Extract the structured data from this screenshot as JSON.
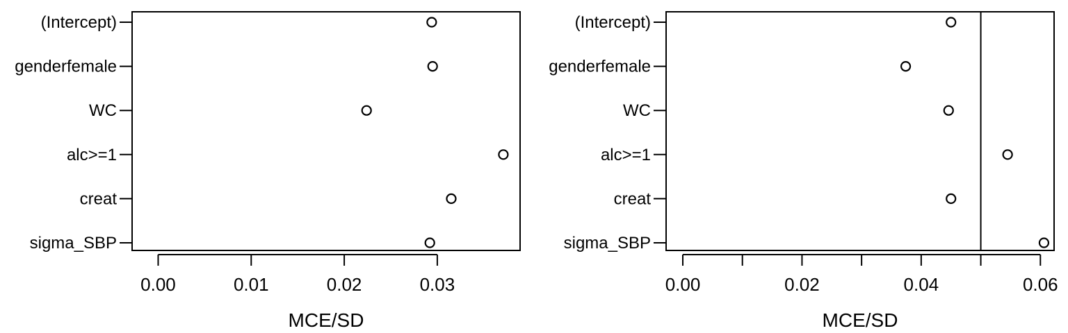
{
  "chart_data": [
    {
      "type": "scatter",
      "xlabel": "MCE/SD",
      "ylabel": "",
      "categories": [
        "(Intercept)",
        "genderfemale",
        "WC",
        "alc>=1",
        "creat",
        "sigma_SBP"
      ],
      "values": [
        0.0294,
        0.0295,
        0.0224,
        0.0371,
        0.0315,
        0.0292
      ],
      "xlim": [
        -0.0028,
        0.0389
      ],
      "xticks": [
        "0.00",
        "0.01",
        "0.02",
        "0.03"
      ],
      "xtick_values": [
        0.0,
        0.01,
        0.02,
        0.03
      ],
      "reference_line": null
    },
    {
      "type": "scatter",
      "xlabel": "MCE/SD",
      "ylabel": "",
      "categories": [
        "(Intercept)",
        "genderfemale",
        "WC",
        "alc>=1",
        "creat",
        "sigma_SBP"
      ],
      "values": [
        0.045,
        0.0374,
        0.0446,
        0.0545,
        0.045,
        0.0606
      ],
      "xlim": [
        -0.0028,
        0.0623
      ],
      "xticks": [
        "0.00",
        "0.02",
        "0.04",
        "0.06"
      ],
      "xtick_values": [
        0.0,
        0.02,
        0.04,
        0.06
      ],
      "minor_ticks": [
        0.01,
        0.03,
        0.05
      ],
      "reference_line": 0.05
    }
  ]
}
